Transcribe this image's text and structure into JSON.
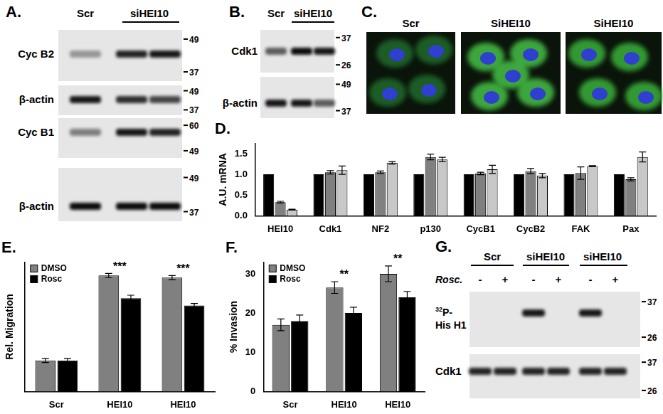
{
  "panels": {
    "A": {
      "label": "A.",
      "lanes": [
        "Scr",
        "siHEI10"
      ],
      "blots": [
        {
          "name": "Cyc B2",
          "markers": [
            49,
            37
          ]
        },
        {
          "name": "β-actin",
          "markers": [
            49,
            37
          ]
        },
        {
          "name": "Cyc B1",
          "markers": [
            60,
            49
          ]
        },
        {
          "name": "β-actin",
          "markers": [
            49,
            37
          ]
        }
      ]
    },
    "B": {
      "label": "B.",
      "lanes": [
        "Scr",
        "siHEI10"
      ],
      "blots": [
        {
          "name": "Cdk1",
          "markers": [
            37,
            26
          ]
        },
        {
          "name": "β-actin",
          "markers": [
            49,
            37
          ]
        }
      ]
    },
    "C": {
      "label": "C.",
      "images": [
        "Scr",
        "SiHEI10",
        "SiHEI10"
      ]
    },
    "G": {
      "label": "G.",
      "lanes": [
        "Scr",
        "siHEI10",
        "siHEI10"
      ],
      "treatment": "Rosc.",
      "treatment_signs": [
        "-",
        "+",
        "-",
        "+",
        "-",
        "+"
      ],
      "blots": [
        {
          "name_sup": "32",
          "name": "P-",
          "name2": "His H1",
          "markers": [
            37,
            26
          ]
        },
        {
          "name": "Cdk1",
          "markers": [
            37,
            26
          ]
        }
      ]
    }
  },
  "chart_data": [
    {
      "type": "bar",
      "title": "D.",
      "y_label": "A.U. mRNA",
      "categories": [
        "HEI10",
        "Cdk1",
        "NF2",
        "p130",
        "CycB1",
        "CycB2",
        "FAK",
        "Pax"
      ],
      "series": [
        {
          "color": "#000000",
          "values": [
            1,
            1,
            1,
            1,
            1,
            1,
            1,
            1
          ],
          "errors": [
            0,
            0,
            0,
            0,
            0,
            0,
            0,
            0
          ]
        },
        {
          "color": "#808080",
          "values": [
            0.33,
            1.05,
            1.05,
            1.42,
            1.02,
            1.08,
            1.03,
            0.88
          ],
          "errors": [
            0.02,
            0.04,
            0.03,
            0.07,
            0.03,
            0.06,
            0.15,
            0.04
          ]
        },
        {
          "color": "#c8c8c8",
          "values": [
            0.15,
            1.1,
            1.28,
            1.36,
            1.12,
            0.97,
            1.2,
            1.42
          ],
          "errors": [
            0.01,
            0.1,
            0.03,
            0.05,
            0.1,
            0.05,
            0.01,
            0.12
          ]
        }
      ],
      "ylim": [
        0,
        1.75
      ],
      "yticks": [
        {
          "value": 0,
          "label": "0.0"
        },
        {
          "value": 0.5,
          "label": "0.5"
        },
        {
          "value": 1,
          "label": "1.0"
        },
        {
          "value": 1.5,
          "label": "1.5"
        }
      ],
      "grid": false
    },
    {
      "type": "bar",
      "title": "E.",
      "y_label": "Rel. Migration",
      "categories": [
        "Scr",
        "HEI10",
        "HEI10"
      ],
      "series": [
        {
          "name": "DMSO",
          "color": "#808080",
          "values": [
            30,
            112,
            110
          ],
          "errors": [
            2,
            2,
            2
          ]
        },
        {
          "name": "Rosc",
          "color": "#000000",
          "values": [
            30,
            90,
            83
          ],
          "errors": [
            2,
            3,
            2
          ]
        }
      ],
      "annotations": [
        null,
        "***",
        "***"
      ],
      "ylim": [
        0,
        125
      ],
      "tick_labels": "x",
      "grid": false,
      "legend": "upper left"
    },
    {
      "type": "bar",
      "title": "F.",
      "y_label": "% Invasion",
      "categories": [
        "Scr",
        "HEI10",
        "HEI10"
      ],
      "series": [
        {
          "name": "DMSO",
          "color": "#808080",
          "values": [
            17,
            26.5,
            30
          ],
          "errors": [
            1.5,
            1.5,
            2
          ]
        },
        {
          "name": "Rosc",
          "color": "#000000",
          "values": [
            18,
            20,
            24
          ],
          "errors": [
            1.5,
            1.5,
            1.5
          ]
        }
      ],
      "annotations": [
        null,
        "**",
        "**"
      ],
      "ylim": [
        0,
        33
      ],
      "yticks": [
        0,
        10,
        20,
        30
      ],
      "grid": false,
      "legend": "upper left"
    }
  ]
}
